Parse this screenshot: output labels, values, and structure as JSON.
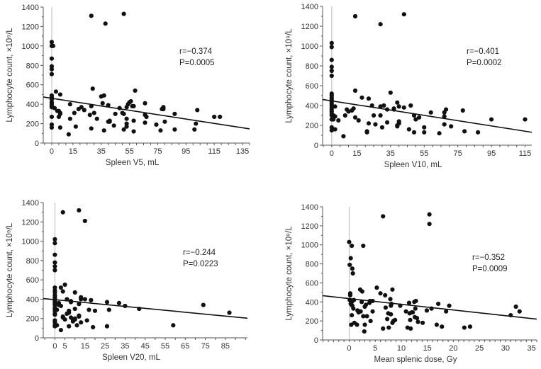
{
  "chart_data": [
    {
      "type": "scatter",
      "xlabel": "Spleen V5, mL",
      "ylabel": "Lymphocyte count, ×10⁹/L",
      "annotation": [
        "r=−0.374",
        "P=0.0005"
      ],
      "xlim": [
        -6,
        140
      ],
      "ylim": [
        0,
        1400
      ],
      "xticks": [
        0,
        15,
        35,
        55,
        75,
        95,
        115,
        135
      ],
      "yticks": [
        0,
        200,
        400,
        600,
        800,
        1000,
        1200,
        1400
      ],
      "regression": {
        "intercept": 461,
        "slope": -2.25
      },
      "points": [
        [
          0,
          1040
        ],
        [
          0,
          1000
        ],
        [
          1,
          1000
        ],
        [
          0,
          870
        ],
        [
          0,
          790
        ],
        [
          0,
          760
        ],
        [
          0,
          710
        ],
        [
          0,
          490
        ],
        [
          0,
          470
        ],
        [
          0,
          450
        ],
        [
          0,
          420
        ],
        [
          0,
          400
        ],
        [
          0,
          380
        ],
        [
          0,
          370
        ],
        [
          0,
          270
        ],
        [
          0,
          190
        ],
        [
          0,
          160
        ],
        [
          3,
          530
        ],
        [
          2,
          360
        ],
        [
          4,
          330
        ],
        [
          5,
          330
        ],
        [
          5,
          270
        ],
        [
          6,
          500
        ],
        [
          6,
          310
        ],
        [
          6,
          300
        ],
        [
          6,
          160
        ],
        [
          12,
          90
        ],
        [
          13,
          400
        ],
        [
          13,
          250
        ],
        [
          16,
          310
        ],
        [
          17,
          170
        ],
        [
          19,
          350
        ],
        [
          21,
          370
        ],
        [
          23,
          340
        ],
        [
          27,
          290
        ],
        [
          28,
          380
        ],
        [
          28,
          150
        ],
        [
          29,
          560
        ],
        [
          30,
          310
        ],
        [
          32,
          250
        ],
        [
          35,
          480
        ],
        [
          36,
          410
        ],
        [
          37,
          490
        ],
        [
          37,
          130
        ],
        [
          40,
          390
        ],
        [
          40,
          220
        ],
        [
          41,
          230
        ],
        [
          41,
          220
        ],
        [
          44,
          180
        ],
        [
          45,
          300
        ],
        [
          48,
          360
        ],
        [
          50,
          310
        ],
        [
          51,
          140
        ],
        [
          51,
          300
        ],
        [
          53,
          370
        ],
        [
          53,
          250
        ],
        [
          53,
          170
        ],
        [
          53,
          200
        ],
        [
          54,
          400
        ],
        [
          55,
          420
        ],
        [
          56,
          430
        ],
        [
          57,
          380
        ],
        [
          58,
          380
        ],
        [
          58,
          120
        ],
        [
          58,
          230
        ],
        [
          59,
          540
        ],
        [
          66,
          410
        ],
        [
          66,
          290
        ],
        [
          66,
          210
        ],
        [
          67,
          270
        ],
        [
          74,
          190
        ],
        [
          77,
          130
        ],
        [
          78,
          350
        ],
        [
          79,
          370
        ],
        [
          79,
          350
        ],
        [
          80,
          220
        ],
        [
          87,
          300
        ],
        [
          87,
          140
        ],
        [
          101,
          140
        ],
        [
          102,
          200
        ],
        [
          103,
          340
        ],
        [
          115,
          270
        ],
        [
          119,
          270
        ],
        [
          28,
          1310
        ],
        [
          38,
          1230
        ],
        [
          51,
          1330
        ]
      ]
    },
    {
      "type": "scatter",
      "xlabel": "Spleen V10, mL",
      "ylabel": "Lymphocyte count, ×10⁹/L",
      "annotation": [
        "r=−0.401",
        "P=0.0002"
      ],
      "xlim": [
        -5.4,
        119
      ],
      "ylim": [
        0,
        1400
      ],
      "xticks": [
        0,
        15,
        35,
        55,
        75,
        95,
        115
      ],
      "yticks": [
        0,
        200,
        400,
        600,
        800,
        1000,
        1200,
        1400
      ],
      "regression": {
        "intercept": 447,
        "slope": -2.66
      },
      "points": [
        [
          0,
          1030
        ],
        [
          0,
          990
        ],
        [
          0,
          860
        ],
        [
          0,
          790
        ],
        [
          0,
          750
        ],
        [
          0,
          700
        ],
        [
          0,
          520
        ],
        [
          0,
          500
        ],
        [
          0,
          480
        ],
        [
          0,
          460
        ],
        [
          0,
          440
        ],
        [
          0,
          420
        ],
        [
          0,
          400
        ],
        [
          0,
          380
        ],
        [
          0,
          360
        ],
        [
          0,
          340
        ],
        [
          0,
          320
        ],
        [
          0,
          300
        ],
        [
          0,
          260
        ],
        [
          0,
          180
        ],
        [
          0,
          150
        ],
        [
          1,
          260
        ],
        [
          1,
          300
        ],
        [
          2,
          390
        ],
        [
          2,
          160
        ],
        [
          2,
          290
        ],
        [
          4,
          250
        ],
        [
          7,
          90
        ],
        [
          8,
          300
        ],
        [
          9,
          360
        ],
        [
          10,
          340
        ],
        [
          12,
          350
        ],
        [
          13,
          370
        ],
        [
          14,
          550
        ],
        [
          14,
          280
        ],
        [
          16,
          250
        ],
        [
          18,
          480
        ],
        [
          21,
          140
        ],
        [
          21,
          130
        ],
        [
          22,
          470
        ],
        [
          22,
          220
        ],
        [
          24,
          400
        ],
        [
          25,
          300
        ],
        [
          26,
          210
        ],
        [
          29,
          390
        ],
        [
          29,
          300
        ],
        [
          30,
          180
        ],
        [
          31,
          400
        ],
        [
          33,
          360
        ],
        [
          33,
          230
        ],
        [
          35,
          530
        ],
        [
          37,
          360
        ],
        [
          37,
          370
        ],
        [
          39,
          430
        ],
        [
          39,
          200
        ],
        [
          39,
          190
        ],
        [
          40,
          390
        ],
        [
          40,
          240
        ],
        [
          40,
          220
        ],
        [
          43,
          380
        ],
        [
          46,
          160
        ],
        [
          47,
          400
        ],
        [
          49,
          130
        ],
        [
          49,
          300
        ],
        [
          50,
          260
        ],
        [
          52,
          280
        ],
        [
          55,
          130
        ],
        [
          55,
          180
        ],
        [
          59,
          330
        ],
        [
          64,
          120
        ],
        [
          67,
          330
        ],
        [
          67,
          290
        ],
        [
          67,
          210
        ],
        [
          68,
          360
        ],
        [
          71,
          190
        ],
        [
          78,
          350
        ],
        [
          79,
          140
        ],
        [
          87,
          130
        ],
        [
          95,
          260
        ],
        [
          115,
          260
        ],
        [
          14,
          1300
        ],
        [
          29,
          1220
        ],
        [
          43,
          1320
        ]
      ]
    },
    {
      "type": "scatter",
      "xlabel": "Spleen V20, mL",
      "ylabel": "Lymphocyte count, ×10⁹/L",
      "annotation": [
        "r=−0.244",
        "P=0.0223"
      ],
      "xlim": [
        -5.8,
        96
      ],
      "ylim": [
        0,
        1400
      ],
      "xticks": [
        0,
        5,
        15,
        25,
        35,
        45,
        55,
        65,
        75,
        85
      ],
      "yticks": [
        0,
        200,
        400,
        600,
        800,
        1000,
        1200,
        1400
      ],
      "regression": {
        "intercept": 395,
        "slope": -2.0
      },
      "points": [
        [
          0,
          1020
        ],
        [
          0,
          980
        ],
        [
          0,
          860
        ],
        [
          0,
          780
        ],
        [
          0,
          740
        ],
        [
          0,
          700
        ],
        [
          0,
          520
        ],
        [
          0,
          490
        ],
        [
          0,
          470
        ],
        [
          0,
          440
        ],
        [
          0,
          420
        ],
        [
          0,
          400
        ],
        [
          0,
          380
        ],
        [
          0,
          360
        ],
        [
          0,
          340
        ],
        [
          0,
          310
        ],
        [
          0,
          300
        ],
        [
          0,
          280
        ],
        [
          0,
          250
        ],
        [
          0,
          240
        ],
        [
          0,
          180
        ],
        [
          0,
          160
        ],
        [
          0,
          130
        ],
        [
          0,
          120
        ],
        [
          1,
          290
        ],
        [
          1,
          130
        ],
        [
          2,
          360
        ],
        [
          2,
          340
        ],
        [
          3,
          330
        ],
        [
          3,
          80
        ],
        [
          3,
          520
        ],
        [
          4,
          210
        ],
        [
          4,
          480
        ],
        [
          4,
          220
        ],
        [
          5,
          550
        ],
        [
          5,
          190
        ],
        [
          6,
          400
        ],
        [
          6,
          250
        ],
        [
          7,
          120
        ],
        [
          7,
          260
        ],
        [
          7,
          280
        ],
        [
          8,
          370
        ],
        [
          8,
          380
        ],
        [
          8,
          210
        ],
        [
          9,
          170
        ],
        [
          9,
          190
        ],
        [
          10,
          200
        ],
        [
          10,
          190
        ],
        [
          10,
          300
        ],
        [
          10,
          470
        ],
        [
          11,
          130
        ],
        [
          12,
          350
        ],
        [
          12,
          230
        ],
        [
          12,
          220
        ],
        [
          13,
          160
        ],
        [
          13,
          420
        ],
        [
          13,
          400
        ],
        [
          15,
          400
        ],
        [
          16,
          180
        ],
        [
          17,
          290
        ],
        [
          18,
          390
        ],
        [
          19,
          110
        ],
        [
          20,
          280
        ],
        [
          26,
          370
        ],
        [
          27,
          290
        ],
        [
          26,
          120
        ],
        [
          32,
          360
        ],
        [
          35,
          330
        ],
        [
          42,
          300
        ],
        [
          59,
          130
        ],
        [
          74,
          340
        ],
        [
          87,
          260
        ],
        [
          4,
          1300
        ],
        [
          12,
          1320
        ],
        [
          15,
          1210
        ]
      ]
    },
    {
      "type": "scatter",
      "xlabel": "Mean splenic dose, Gy",
      "ylabel": "Lymphocyte count, ×10⁹/L",
      "annotation": [
        "r=−0.352",
        "P=0.0009"
      ],
      "xlim": [
        -5.1,
        36
      ],
      "ylim": [
        0,
        1400
      ],
      "xticks": [
        0,
        5,
        10,
        15,
        20,
        25,
        30,
        35
      ],
      "yticks": [
        0,
        200,
        400,
        600,
        800,
        1000,
        1200,
        1400
      ],
      "regression": {
        "intercept": 435,
        "slope": -6.0
      },
      "points": [
        [
          0,
          1030
        ],
        [
          0.5,
          990
        ],
        [
          0.3,
          860
        ],
        [
          0.1,
          790
        ],
        [
          0.6,
          750
        ],
        [
          0.7,
          700
        ],
        [
          0.2,
          490
        ],
        [
          0.2,
          470
        ],
        [
          0.1,
          420
        ],
        [
          0.3,
          410
        ],
        [
          0.5,
          400
        ],
        [
          0.3,
          380
        ],
        [
          0.6,
          360
        ],
        [
          0.5,
          260
        ],
        [
          0.4,
          160
        ],
        [
          0.9,
          420
        ],
        [
          0.8,
          330
        ],
        [
          1,
          180
        ],
        [
          1.5,
          160
        ],
        [
          1.6,
          310
        ],
        [
          1.8,
          290
        ],
        [
          2.1,
          530
        ],
        [
          2.2,
          300
        ],
        [
          2.5,
          510
        ],
        [
          2.7,
          250
        ],
        [
          2.4,
          400
        ],
        [
          2.9,
          90
        ],
        [
          3,
          160
        ],
        [
          3,
          350
        ],
        [
          3.2,
          370
        ],
        [
          3.4,
          250
        ],
        [
          3.9,
          390
        ],
        [
          4,
          410
        ],
        [
          4.1,
          200
        ],
        [
          4.5,
          300
        ],
        [
          4.5,
          410
        ],
        [
          2.7,
          990
        ],
        [
          5.3,
          550
        ],
        [
          6,
          490
        ],
        [
          6.5,
          120
        ],
        [
          6.9,
          470
        ],
        [
          7,
          340
        ],
        [
          7.3,
          220
        ],
        [
          7.5,
          280
        ],
        [
          7.6,
          130
        ],
        [
          7.9,
          430
        ],
        [
          8,
          360
        ],
        [
          8,
          270
        ],
        [
          8.1,
          380
        ],
        [
          8.3,
          530
        ],
        [
          8.3,
          180
        ],
        [
          8.5,
          200
        ],
        [
          8.8,
          210
        ],
        [
          9.8,
          360
        ],
        [
          10.9,
          300
        ],
        [
          11.2,
          130
        ],
        [
          11.5,
          390
        ],
        [
          11.6,
          280
        ],
        [
          11.7,
          210
        ],
        [
          11.8,
          120
        ],
        [
          12,
          290
        ],
        [
          12.2,
          290
        ],
        [
          12.5,
          400
        ],
        [
          12.6,
          240
        ],
        [
          12.7,
          330
        ],
        [
          12.8,
          410
        ],
        [
          13,
          230
        ],
        [
          13.2,
          190
        ],
        [
          14.1,
          180
        ],
        [
          14.9,
          310
        ],
        [
          15.8,
          330
        ],
        [
          16.8,
          160
        ],
        [
          17.1,
          380
        ],
        [
          17.8,
          140
        ],
        [
          18.6,
          300
        ],
        [
          19.2,
          360
        ],
        [
          22.1,
          130
        ],
        [
          23.2,
          140
        ],
        [
          31,
          260
        ],
        [
          32,
          350
        ],
        [
          32.7,
          300
        ],
        [
          6.5,
          1300
        ],
        [
          15.4,
          1320
        ],
        [
          15.4,
          1220
        ]
      ]
    }
  ]
}
